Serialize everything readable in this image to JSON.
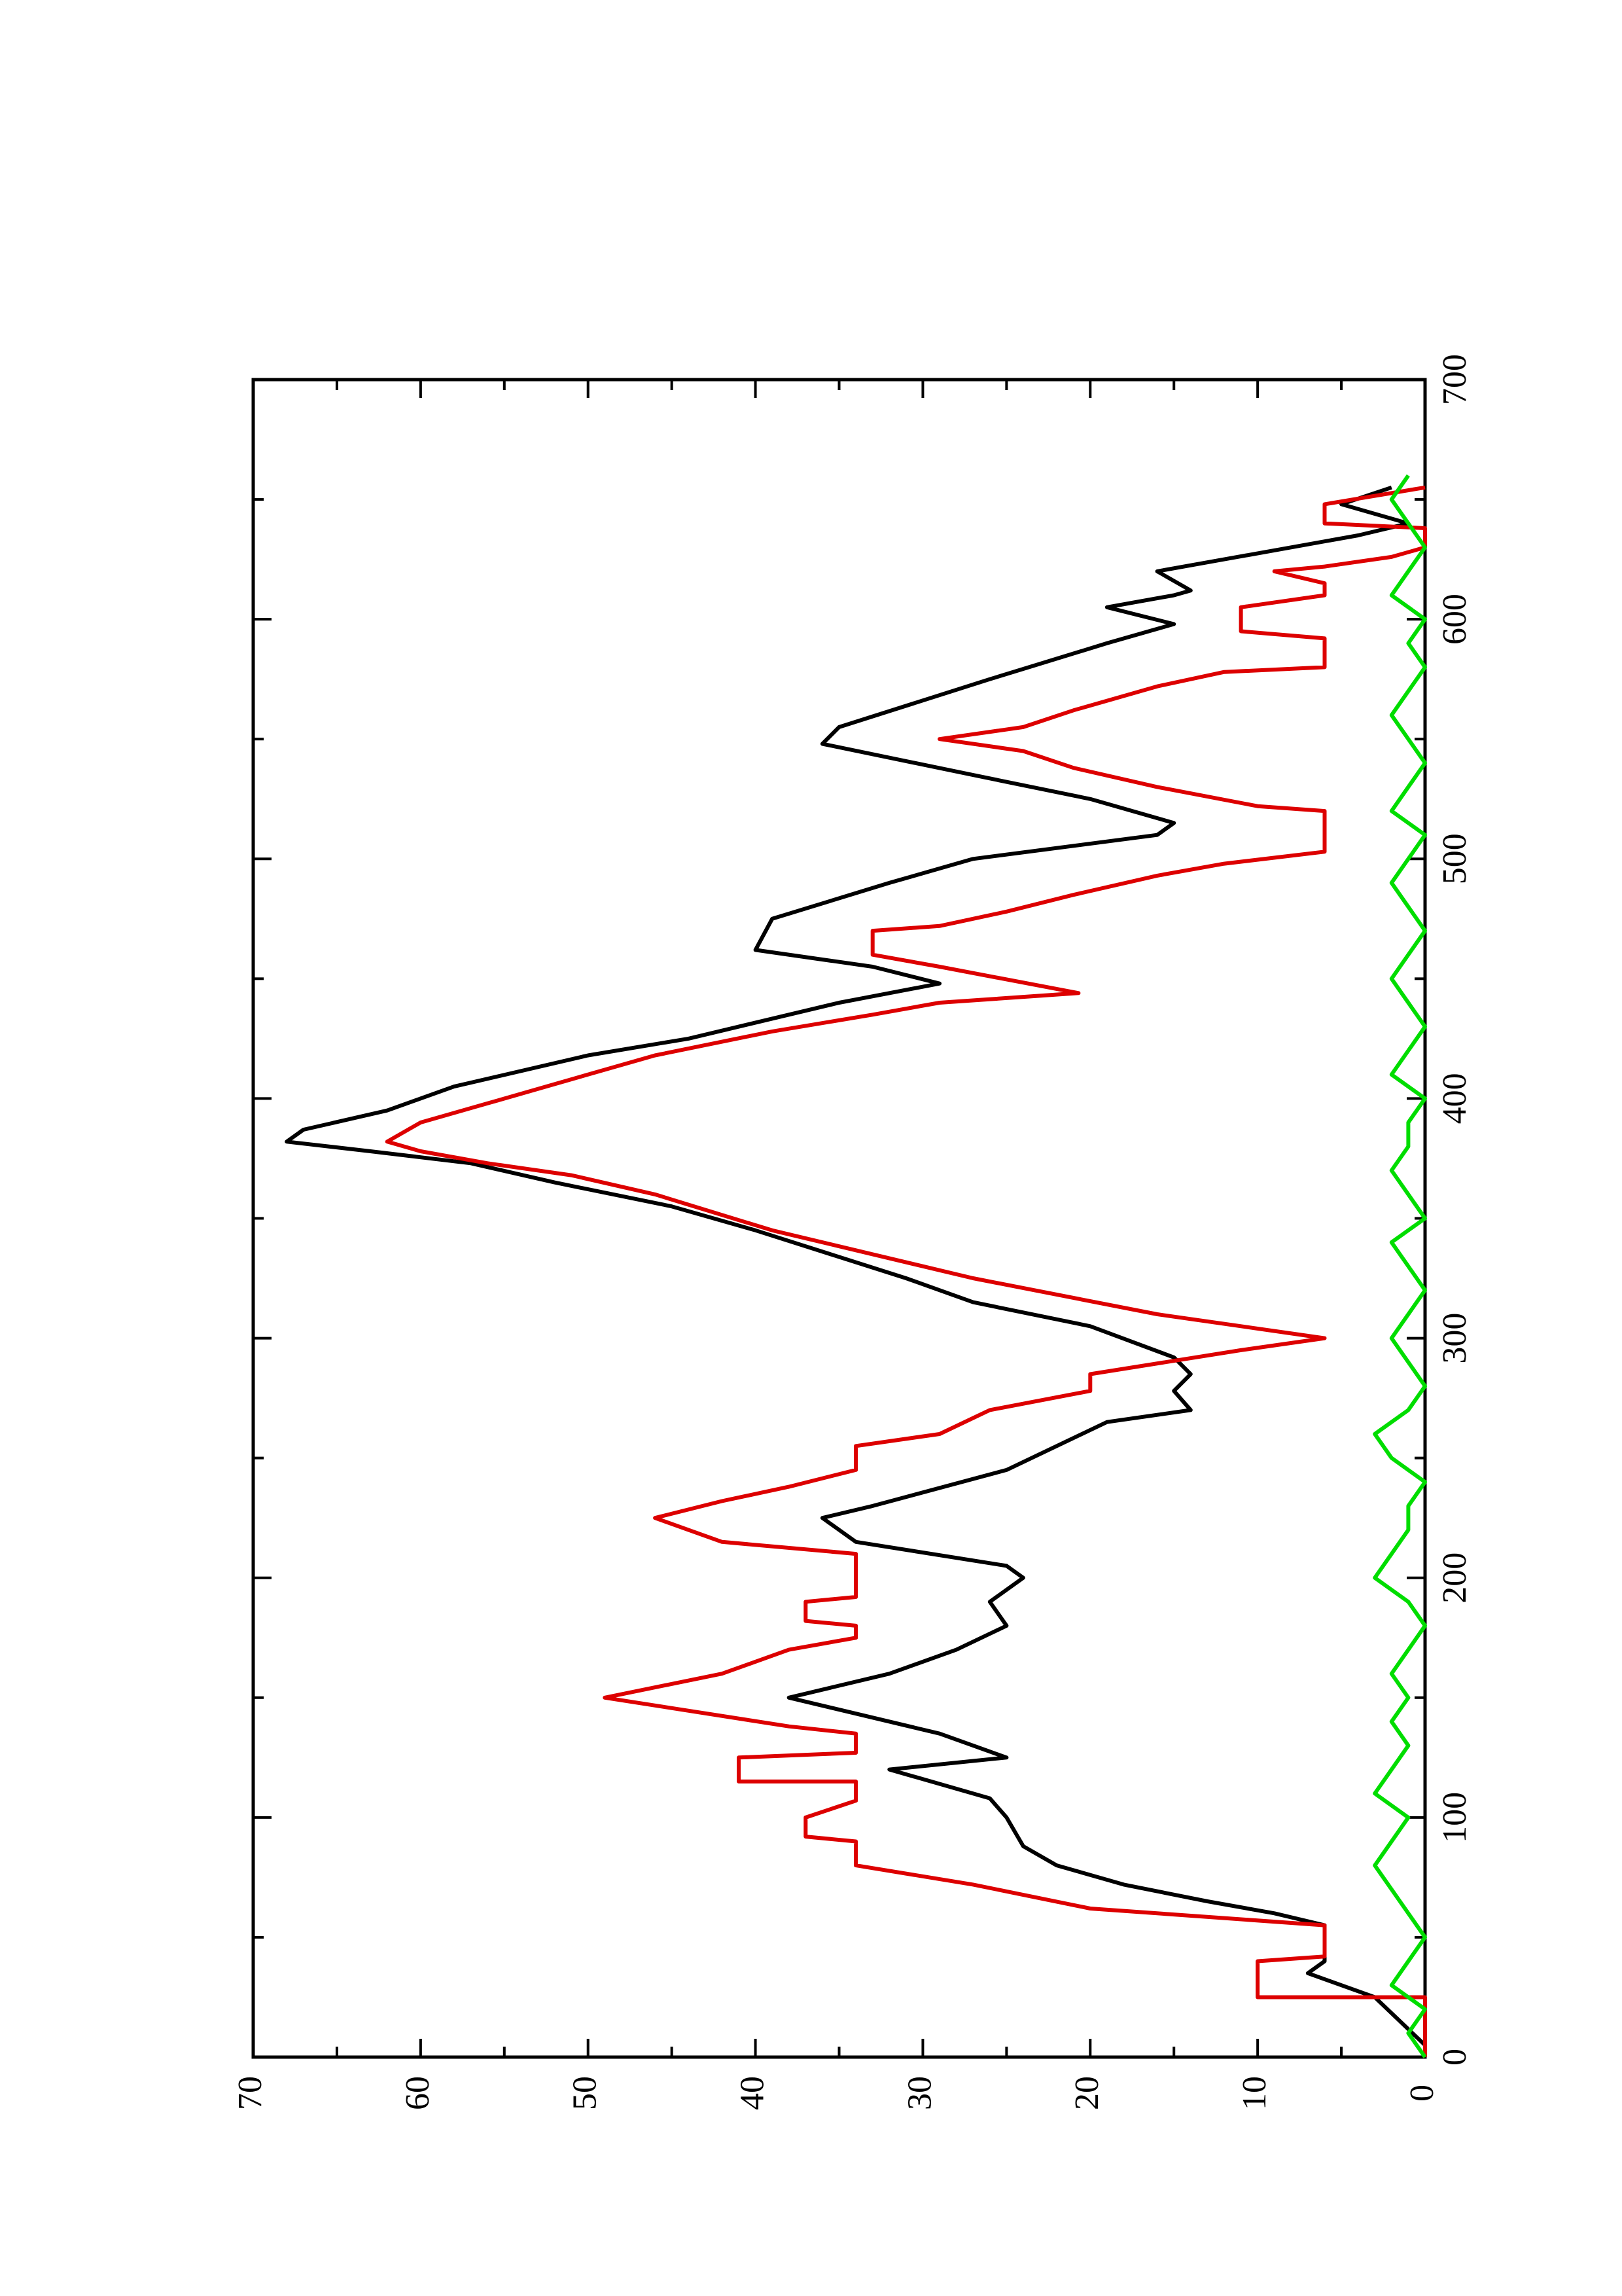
{
  "chart_data": {
    "type": "line",
    "xlim": [
      0,
      700
    ],
    "xticks": [
      0,
      100,
      200,
      300,
      400,
      500,
      600,
      700
    ],
    "ylim": [
      0,
      70
    ],
    "yticks": [
      0,
      10,
      20,
      30,
      40,
      50,
      60,
      70
    ],
    "series": [
      {
        "color": "#000000",
        "x": [
          5,
          25,
          35,
          40,
          55,
          60,
          65,
          72,
          80,
          88,
          100,
          108,
          120,
          125,
          135,
          150,
          160,
          170,
          180,
          190,
          200,
          205,
          215,
          225,
          230,
          245,
          255,
          265,
          270,
          278,
          285,
          292,
          305,
          315,
          325,
          345,
          355,
          365,
          373,
          378,
          382,
          387,
          395,
          405,
          418,
          425,
          440,
          448,
          455,
          462,
          475,
          490,
          500,
          510,
          515,
          525,
          535,
          548,
          555,
          575,
          590,
          598,
          605,
          610,
          612,
          620,
          625,
          635,
          640,
          648,
          655
        ],
        "values": [
          0,
          3,
          7,
          6,
          6,
          9,
          13,
          18,
          22,
          24,
          25,
          26,
          32,
          25,
          29,
          38,
          32,
          28,
          25,
          26,
          24,
          25,
          34,
          36,
          33,
          25,
          22,
          19,
          14,
          15,
          14,
          15,
          20,
          27,
          31,
          40,
          45,
          52,
          57,
          63,
          68,
          67,
          62,
          58,
          50,
          44,
          35,
          29,
          33,
          40,
          39,
          32,
          27,
          16,
          15,
          20,
          27,
          36,
          35,
          26,
          19,
          15,
          19,
          15,
          14,
          16,
          12,
          4,
          1,
          5,
          2
        ]
      },
      {
        "color": "#dd0000",
        "x": [
          0,
          25,
          25,
          40,
          42,
          55,
          62,
          72,
          80,
          90,
          92,
          100,
          107,
          115,
          115,
          125,
          127,
          135,
          138,
          150,
          160,
          170,
          175,
          180,
          182,
          190,
          192,
          210,
          215,
          225,
          232,
          238,
          245,
          255,
          260,
          270,
          278,
          285,
          295,
          300,
          310,
          325,
          335,
          345,
          360,
          368,
          373,
          378,
          382,
          390,
          398,
          408,
          418,
          428,
          435,
          440,
          444,
          455,
          460,
          470,
          472,
          478,
          485,
          493,
          498,
          503,
          520,
          522,
          530,
          538,
          545,
          550,
          555,
          562,
          572,
          578,
          580,
          592,
          595,
          605,
          610,
          615,
          620,
          622,
          626,
          630,
          638,
          640,
          648,
          655
        ],
        "values": [
          0,
          0,
          10,
          10,
          6,
          6,
          20,
          27,
          34,
          34,
          37,
          37,
          34,
          34,
          41,
          41,
          34,
          34,
          38,
          49,
          42,
          38,
          34,
          34,
          37,
          37,
          34,
          34,
          42,
          46,
          42,
          38,
          34,
          34,
          29,
          26,
          20,
          20,
          11,
          6,
          16,
          27,
          33,
          39,
          46,
          51,
          56,
          60,
          62,
          60,
          56,
          51,
          46,
          39,
          33,
          29,
          20.7,
          29,
          33,
          33,
          29,
          25,
          21,
          16,
          12,
          6,
          6,
          10,
          16,
          21,
          24,
          29,
          24,
          21,
          16,
          12,
          6,
          6,
          11,
          11,
          6,
          6,
          9,
          6,
          2,
          0,
          0,
          6,
          6,
          0
        ]
      },
      {
        "color": "#00dd00",
        "x": [
          0,
          10,
          20,
          30,
          40,
          50,
          60,
          70,
          80,
          90,
          100,
          110,
          120,
          130,
          140,
          150,
          160,
          170,
          180,
          190,
          200,
          210,
          220,
          230,
          240,
          250,
          260,
          270,
          280,
          290,
          300,
          310,
          320,
          330,
          340,
          350,
          360,
          370,
          380,
          390,
          400,
          410,
          420,
          430,
          440,
          450,
          460,
          470,
          480,
          490,
          500,
          510,
          520,
          530,
          540,
          550,
          560,
          570,
          580,
          590,
          600,
          610,
          620,
          630,
          640,
          650,
          660
        ],
        "values": [
          0,
          1,
          0,
          2,
          1,
          0,
          1,
          2,
          3,
          2,
          1,
          3,
          2,
          1,
          2,
          1,
          2,
          1,
          0,
          1,
          3,
          2,
          1,
          1,
          0,
          2,
          3,
          1,
          0,
          1,
          2,
          1,
          0,
          1,
          2,
          0,
          1,
          2,
          1,
          1,
          0,
          2,
          1,
          0,
          1,
          2,
          1,
          0,
          1,
          2,
          1,
          0,
          2,
          1,
          0,
          1,
          2,
          1,
          0,
          1,
          0,
          2,
          1,
          0,
          1,
          2,
          1
        ]
      }
    ]
  }
}
